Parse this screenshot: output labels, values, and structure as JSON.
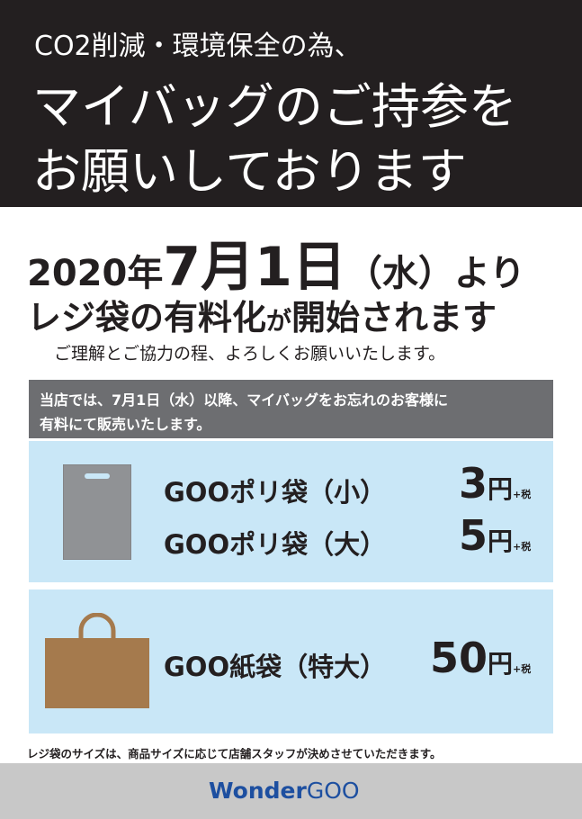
{
  "header": {
    "line1": "CO2削減・環境保全の為、",
    "line2": "マイバッグのご持参を",
    "line3": "お願いしております"
  },
  "announcement": {
    "date_parts": [
      "2020年",
      "7月1日",
      "（水）より"
    ],
    "headline_parts": [
      "レジ袋の有料化",
      "が",
      "開始されます"
    ],
    "request": "ご理解とご協力の程、よろしくお願いいたします。"
  },
  "notice": {
    "lines": [
      "当店では、7月1日（水）以降、マイバッグをお忘れのお客様に",
      "有料にて販売いたします。"
    ]
  },
  "items": [
    {
      "name": "GOOポリ袋（小）",
      "price": 3,
      "unit": "円",
      "tax": "+税"
    },
    {
      "name": "GOOポリ袋（大）",
      "price": 5,
      "unit": "円",
      "tax": "+税"
    },
    {
      "name": "GOO紙袋（特大）",
      "price": 50,
      "unit": "円",
      "tax": "+税"
    }
  ],
  "footnote": "レジ袋のサイズは、商品サイズに応じて店舗スタッフが決めさせていただきます。",
  "footer": {
    "logo_parts": [
      "Wonder",
      "GOO"
    ]
  }
}
